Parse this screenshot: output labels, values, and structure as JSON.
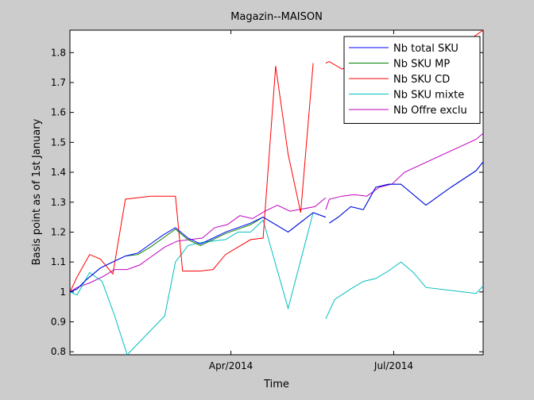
{
  "chart_data": {
    "type": "line",
    "title": "Magazin--MAISON",
    "xlabel": "Time",
    "ylabel": "Basis point as of 1st January",
    "xlim": [
      "2014-01-01",
      "2014-08-20"
    ],
    "ylim": [
      0.79,
      1.875
    ],
    "x_ticks": [
      {
        "date": "2014-04-01",
        "label": "Apr/2014"
      },
      {
        "date": "2014-07-01",
        "label": "Jul/2014"
      }
    ],
    "y_ticks": [
      {
        "value": 0.8,
        "label": "0.8"
      },
      {
        "value": 0.9,
        "label": "0.9"
      },
      {
        "value": 1.0,
        "label": "1"
      },
      {
        "value": 1.1,
        "label": "1.1"
      },
      {
        "value": 1.2,
        "label": "1.2"
      },
      {
        "value": 1.3,
        "label": "1.3"
      },
      {
        "value": 1.4,
        "label": "1.4"
      },
      {
        "value": 1.5,
        "label": "1.5"
      },
      {
        "value": 1.6,
        "label": "1.6"
      },
      {
        "value": 1.7,
        "label": "1.7"
      },
      {
        "value": 1.8,
        "label": "1.8"
      }
    ],
    "grid": false,
    "legend_position": "top-right",
    "series": [
      {
        "name": "Nb total SKU",
        "color": "#0000ff",
        "segments": [
          [
            [
              "2014-01-01",
              1.0
            ],
            [
              "2014-01-05",
              1.01
            ],
            [
              "2014-01-10",
              1.04
            ],
            [
              "2014-01-18",
              1.08
            ],
            [
              "2014-01-25",
              1.1
            ],
            [
              "2014-02-01",
              1.12
            ],
            [
              "2014-02-08",
              1.13
            ],
            [
              "2014-02-15",
              1.16
            ],
            [
              "2014-02-22",
              1.19
            ],
            [
              "2014-03-01",
              1.215
            ],
            [
              "2014-03-08",
              1.18
            ],
            [
              "2014-03-15",
              1.16
            ],
            [
              "2014-03-22",
              1.18
            ],
            [
              "2014-03-29",
              1.2
            ],
            [
              "2014-04-05",
              1.215
            ],
            [
              "2014-04-12",
              1.23
            ],
            [
              "2014-04-19",
              1.25
            ],
            [
              "2014-05-03",
              1.2
            ],
            [
              "2014-05-17",
              1.265
            ],
            [
              "2014-05-24",
              1.25
            ]
          ],
          [
            [
              "2014-05-26",
              1.23
            ],
            [
              "2014-05-31",
              1.25
            ],
            [
              "2014-06-07",
              1.285
            ],
            [
              "2014-06-14",
              1.275
            ],
            [
              "2014-06-21",
              1.35
            ],
            [
              "2014-06-28",
              1.36
            ],
            [
              "2014-07-05",
              1.36
            ],
            [
              "2014-07-19",
              1.29
            ],
            [
              "2014-08-02",
              1.35
            ],
            [
              "2014-08-16",
              1.405
            ],
            [
              "2014-08-20",
              1.435
            ]
          ]
        ]
      },
      {
        "name": "Nb SKU MP",
        "color": "#008000",
        "segments": [
          [
            [
              "2014-01-01",
              1.0
            ],
            [
              "2014-01-05",
              1.01
            ],
            [
              "2014-01-10",
              1.04
            ],
            [
              "2014-01-18",
              1.08
            ],
            [
              "2014-01-25",
              1.1
            ],
            [
              "2014-02-01",
              1.12
            ],
            [
              "2014-02-08",
              1.125
            ],
            [
              "2014-02-15",
              1.15
            ],
            [
              "2014-02-22",
              1.18
            ],
            [
              "2014-03-01",
              1.21
            ],
            [
              "2014-03-08",
              1.175
            ],
            [
              "2014-03-15",
              1.155
            ],
            [
              "2014-03-22",
              1.175
            ],
            [
              "2014-03-29",
              1.195
            ],
            [
              "2014-04-05",
              1.21
            ],
            [
              "2014-04-12",
              1.225
            ],
            [
              "2014-04-19",
              1.25
            ],
            [
              "2014-05-03",
              1.2
            ],
            [
              "2014-05-17",
              1.265
            ],
            [
              "2014-05-24",
              1.25
            ]
          ],
          [
            [
              "2014-05-26",
              1.23
            ],
            [
              "2014-05-31",
              1.25
            ],
            [
              "2014-06-07",
              1.285
            ],
            [
              "2014-06-14",
              1.275
            ],
            [
              "2014-06-21",
              1.35
            ],
            [
              "2014-06-28",
              1.36
            ],
            [
              "2014-07-05",
              1.36
            ],
            [
              "2014-07-19",
              1.29
            ],
            [
              "2014-08-02",
              1.35
            ],
            [
              "2014-08-16",
              1.405
            ],
            [
              "2014-08-20",
              1.435
            ]
          ]
        ]
      },
      {
        "name": "Nb SKU CD",
        "color": "#ff0000",
        "segments": [
          [
            [
              "2014-01-01",
              1.0
            ],
            [
              "2014-01-05",
              1.05
            ],
            [
              "2014-01-12",
              1.125
            ],
            [
              "2014-01-18",
              1.11
            ],
            [
              "2014-01-25",
              1.06
            ],
            [
              "2014-02-01",
              1.31
            ],
            [
              "2014-02-08",
              1.315
            ],
            [
              "2014-02-15",
              1.32
            ],
            [
              "2014-03-01",
              1.32
            ],
            [
              "2014-03-05",
              1.07
            ],
            [
              "2014-03-15",
              1.07
            ],
            [
              "2014-03-22",
              1.075
            ],
            [
              "2014-03-29",
              1.125
            ],
            [
              "2014-04-05",
              1.15
            ],
            [
              "2014-04-12",
              1.175
            ],
            [
              "2014-04-19",
              1.18
            ],
            [
              "2014-04-26",
              1.755
            ],
            [
              "2014-05-03",
              1.46
            ],
            [
              "2014-05-10",
              1.265
            ],
            [
              "2014-05-17",
              1.765
            ]
          ],
          [
            [
              "2014-05-24",
              1.765
            ],
            [
              "2014-05-26",
              1.77
            ],
            [
              "2014-06-02",
              1.745
            ],
            [
              "2014-06-14",
              1.765
            ],
            [
              "2014-06-28",
              1.75
            ],
            [
              "2014-07-12",
              1.78
            ],
            [
              "2014-08-02",
              1.8
            ],
            [
              "2014-08-20",
              1.875
            ]
          ]
        ]
      },
      {
        "name": "Nb SKU mixte",
        "color": "#00bfbf",
        "segments": [
          [
            [
              "2014-01-01",
              1.0
            ],
            [
              "2014-01-05",
              0.99
            ],
            [
              "2014-01-12",
              1.065
            ],
            [
              "2014-01-19",
              1.035
            ],
            [
              "2014-01-26",
              0.92
            ],
            [
              "2014-02-02",
              0.79
            ],
            [
              "2014-02-23",
              0.92
            ],
            [
              "2014-03-01",
              1.1
            ],
            [
              "2014-03-08",
              1.155
            ],
            [
              "2014-03-15",
              1.165
            ],
            [
              "2014-03-29",
              1.175
            ],
            [
              "2014-04-05",
              1.2
            ],
            [
              "2014-04-12",
              1.2
            ],
            [
              "2014-04-19",
              1.24
            ],
            [
              "2014-05-03",
              0.945
            ],
            [
              "2014-05-17",
              1.265
            ]
          ],
          [
            [
              "2014-05-24",
              0.91
            ],
            [
              "2014-05-29",
              0.975
            ],
            [
              "2014-06-07",
              1.01
            ],
            [
              "2014-06-14",
              1.035
            ],
            [
              "2014-06-21",
              1.045
            ],
            [
              "2014-06-28",
              1.07
            ],
            [
              "2014-07-05",
              1.1
            ],
            [
              "2014-07-12",
              1.065
            ],
            [
              "2014-07-19",
              1.015
            ],
            [
              "2014-08-16",
              0.995
            ],
            [
              "2014-08-20",
              1.02
            ]
          ]
        ]
      },
      {
        "name": "Nb Offre exclu",
        "color": "#bf00bf",
        "segments": [
          [
            [
              "2014-01-01",
              1.0
            ],
            [
              "2014-01-05",
              1.015
            ],
            [
              "2014-01-12",
              1.03
            ],
            [
              "2014-01-19",
              1.05
            ],
            [
              "2014-01-26",
              1.075
            ],
            [
              "2014-02-02",
              1.075
            ],
            [
              "2014-02-09",
              1.09
            ],
            [
              "2014-02-16",
              1.12
            ],
            [
              "2014-02-23",
              1.15
            ],
            [
              "2014-03-02",
              1.17
            ],
            [
              "2014-03-09",
              1.175
            ],
            [
              "2014-03-16",
              1.18
            ],
            [
              "2014-03-23",
              1.215
            ],
            [
              "2014-03-30",
              1.225
            ],
            [
              "2014-04-06",
              1.255
            ],
            [
              "2014-04-13",
              1.245
            ],
            [
              "2014-04-20",
              1.27
            ],
            [
              "2014-04-27",
              1.29
            ],
            [
              "2014-05-04",
              1.27
            ],
            [
              "2014-05-18",
              1.285
            ],
            [
              "2014-05-24",
              1.315
            ]
          ],
          [
            [
              "2014-05-24",
              1.275
            ],
            [
              "2014-05-26",
              1.31
            ],
            [
              "2014-06-02",
              1.32
            ],
            [
              "2014-06-09",
              1.325
            ],
            [
              "2014-06-16",
              1.32
            ],
            [
              "2014-06-23",
              1.35
            ],
            [
              "2014-06-30",
              1.36
            ],
            [
              "2014-07-07",
              1.4
            ],
            [
              "2014-08-16",
              1.51
            ],
            [
              "2014-08-20",
              1.53
            ]
          ]
        ]
      }
    ]
  }
}
